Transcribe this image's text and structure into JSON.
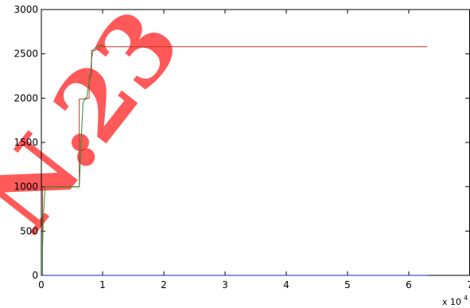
{
  "chart_data": {
    "type": "line",
    "title": "",
    "xlabel": "",
    "ylabel": "",
    "x_multiplier_label": "x 10",
    "x_multiplier_exponent": "4",
    "xlim": [
      0,
      7
    ],
    "ylim": [
      0,
      3000
    ],
    "x_ticks": [
      0,
      1,
      2,
      3,
      4,
      5,
      6,
      7
    ],
    "y_ticks": [
      0,
      500,
      1000,
      1500,
      2000,
      2500,
      3000
    ],
    "x_tick_labels": [
      "0",
      "1",
      "2",
      "3",
      "4",
      "5",
      "6",
      "7"
    ],
    "y_tick_labels": [
      "0",
      "500",
      "1000",
      "1500",
      "2000",
      "2500",
      "3000"
    ],
    "grid": false,
    "series": [
      {
        "color": "#c0392b",
        "x": [
          0,
          0.01,
          0.02,
          0.02,
          0.04,
          0.04,
          0.62,
          0.62,
          0.74,
          0.74,
          0.78,
          0.78,
          0.82,
          0.82,
          0.88,
          0.88,
          0.95,
          0.95,
          1.0,
          1.0,
          6.3
        ],
        "y": [
          0,
          0,
          0,
          980,
          980,
          1000,
          1000,
          1990,
          1990,
          2000,
          2000,
          2250,
          2250,
          2540,
          2540,
          2550,
          2550,
          2600,
          2600,
          2580,
          2580
        ]
      },
      {
        "color": "#2e8b2e",
        "x": [
          0,
          0.02,
          0.02,
          0.03,
          0.05,
          0.07,
          0.62,
          0.64,
          0.66,
          0.68,
          0.72,
          0.74,
          0.76,
          0.8,
          0.82,
          0.85,
          0.9,
          1.0
        ],
        "y": [
          0,
          0,
          300,
          600,
          900,
          1000,
          1000,
          1350,
          1650,
          1950,
          2000,
          2000,
          2100,
          2250,
          2450,
          2550,
          2580,
          2590
        ]
      },
      {
        "color": "#1f1fd0",
        "x": [
          0,
          6.3
        ],
        "y": [
          0,
          0
        ]
      }
    ]
  },
  "watermark": {
    "text": "N.23",
    "color": "#ff1a1a"
  }
}
